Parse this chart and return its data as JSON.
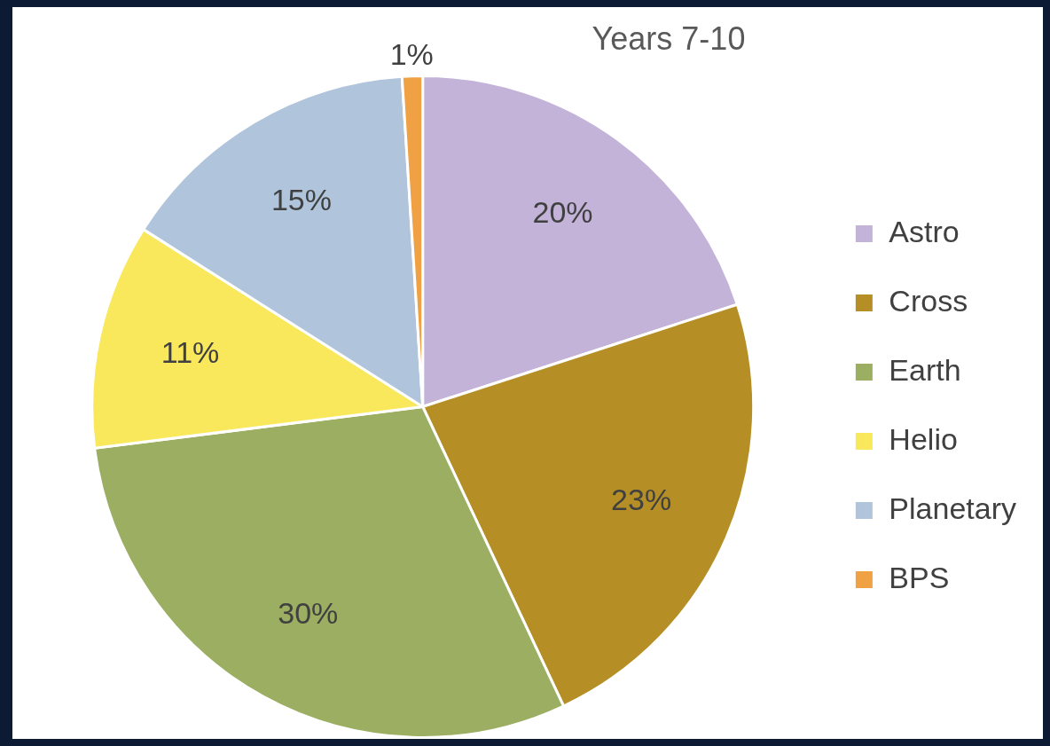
{
  "chart_data": {
    "type": "pie",
    "title": "Years 7-10",
    "categories": [
      "Astro",
      "Cross",
      "Earth",
      "Helio",
      "Planetary",
      "BPS"
    ],
    "values": [
      20,
      23,
      30,
      11,
      15,
      1
    ],
    "value_labels": [
      "20%",
      "23%",
      "30%",
      "11%",
      "15%",
      "1%"
    ],
    "colors": [
      "#c3b3d9",
      "#b58f26",
      "#9bae62",
      "#f9e85c",
      "#b0c4db",
      "#f0a143"
    ],
    "legend": "right"
  }
}
